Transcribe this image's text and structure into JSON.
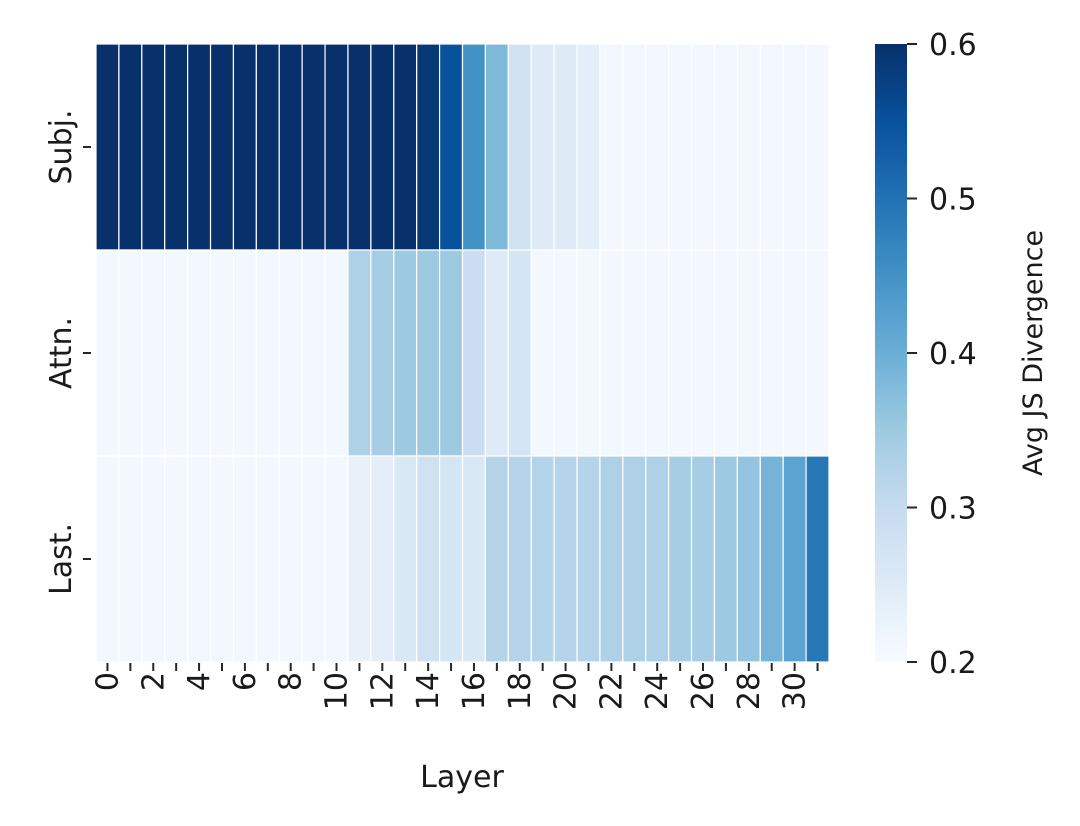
{
  "chart_data": {
    "type": "heatmap",
    "title": "",
    "xlabel": "Layer",
    "ylabel": "",
    "rows": [
      "Subj.",
      "Attn.",
      "Last."
    ],
    "columns": [
      0,
      1,
      2,
      3,
      4,
      5,
      6,
      7,
      8,
      9,
      10,
      11,
      12,
      13,
      14,
      15,
      16,
      17,
      18,
      19,
      20,
      21,
      22,
      23,
      24,
      25,
      26,
      27,
      28,
      29,
      30,
      31
    ],
    "xtick_labels": [
      "0",
      "2",
      "4",
      "6",
      "8",
      "10",
      "12",
      "14",
      "16",
      "18",
      "20",
      "22",
      "24",
      "26",
      "28",
      "30"
    ],
    "values": [
      [
        0.6,
        0.6,
        0.6,
        0.6,
        0.6,
        0.6,
        0.6,
        0.6,
        0.6,
        0.6,
        0.6,
        0.6,
        0.6,
        0.6,
        0.59,
        0.55,
        0.45,
        0.38,
        0.28,
        0.25,
        0.25,
        0.24,
        0.21,
        0.21,
        0.21,
        0.21,
        0.21,
        0.21,
        0.21,
        0.21,
        0.21,
        0.21
      ],
      [
        0.21,
        0.21,
        0.21,
        0.21,
        0.21,
        0.21,
        0.21,
        0.21,
        0.21,
        0.21,
        0.21,
        0.33,
        0.34,
        0.35,
        0.35,
        0.35,
        0.29,
        0.25,
        0.27,
        0.21,
        0.21,
        0.21,
        0.21,
        0.21,
        0.21,
        0.21,
        0.21,
        0.21,
        0.21,
        0.21,
        0.21,
        0.21
      ],
      [
        0.21,
        0.21,
        0.21,
        0.21,
        0.21,
        0.21,
        0.21,
        0.21,
        0.21,
        0.21,
        0.21,
        0.23,
        0.24,
        0.26,
        0.28,
        0.27,
        0.26,
        0.32,
        0.32,
        0.32,
        0.32,
        0.32,
        0.33,
        0.33,
        0.33,
        0.34,
        0.34,
        0.35,
        0.36,
        0.39,
        0.42,
        0.49
      ]
    ],
    "colorbar": {
      "label": "Avg JS Divergence",
      "range": [
        0.2,
        0.6
      ],
      "ticks": [
        "0.2",
        "0.3",
        "0.4",
        "0.5",
        "0.6"
      ],
      "colormap": "Blues"
    },
    "colors": {
      "low": "#f7fbff",
      "high": "#08306b",
      "cell_border": "#ffffff"
    }
  }
}
